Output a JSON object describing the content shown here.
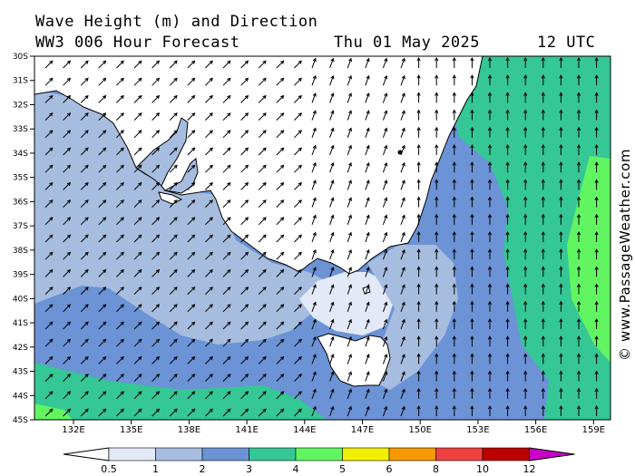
{
  "header": {
    "title_line1": "Wave Height (m) and Direction",
    "title_line2": "WW3 006 Hour Forecast",
    "date": "Thu 01 May 2025",
    "time": "12 UTC"
  },
  "credit": "© www.PassageWeather.com",
  "map": {
    "lat_labels": [
      "30S",
      "31S",
      "32S",
      "33S",
      "34S",
      "35S",
      "36S",
      "37S",
      "38S",
      "39S",
      "40S",
      "41S",
      "42S",
      "43S",
      "44S",
      "45S"
    ],
    "lon_labels": [
      "132E",
      "135E",
      "138E",
      "141E",
      "144E",
      "147E",
      "150E",
      "153E",
      "156E",
      "159E"
    ],
    "land_color": "#ffffff",
    "arrow_color": "#000000",
    "wave_direction": "mostly toward the north-east in the west, toward the north in the Tasman Sea"
  },
  "legend": {
    "labels": [
      "0.5",
      "1",
      "2",
      "3",
      "4",
      "5",
      "6",
      "8",
      "10",
      "12"
    ],
    "colors": [
      "#e3e9f6",
      "#a7bde0",
      "#6b93d6",
      "#35c795",
      "#62f562",
      "#f2ef02",
      "#f99a00",
      "#ef4040",
      "#bc0000",
      "#c800c8"
    ]
  }
}
